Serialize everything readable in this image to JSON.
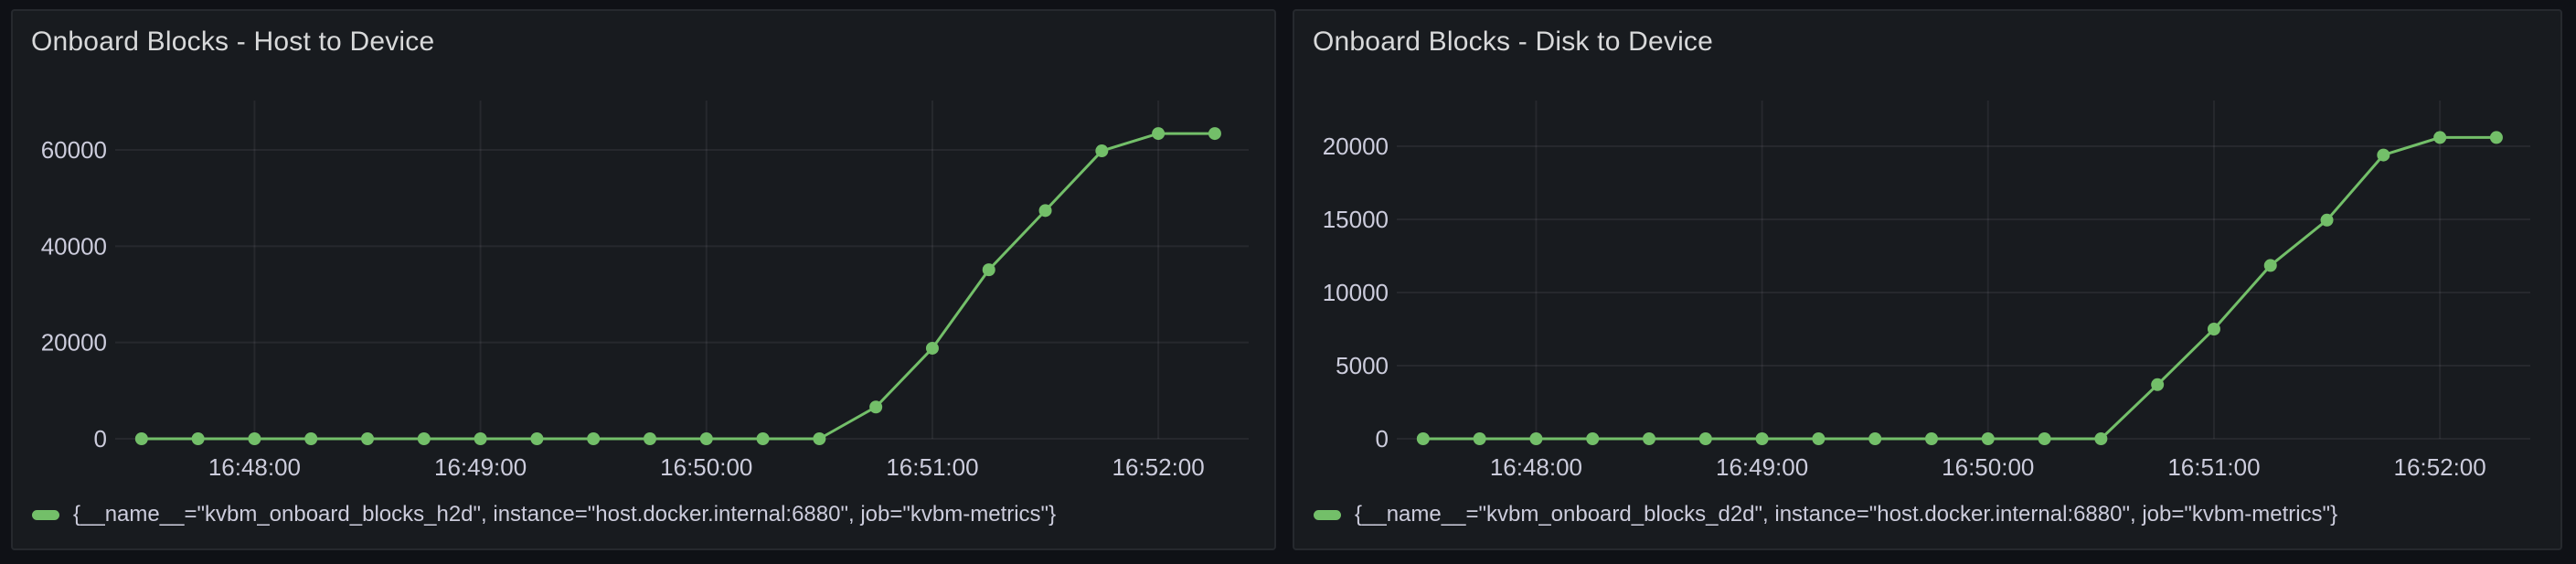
{
  "theme": {
    "series_green": "#73BF69",
    "panel_background": "#181b1f",
    "page_background": "#0f1116"
  },
  "chart_data": [
    {
      "type": "line",
      "title": "Onboard Blocks - Host to Device",
      "xlabel": "",
      "ylabel": "",
      "x": [
        "16:47:30",
        "16:47:45",
        "16:48:00",
        "16:48:15",
        "16:48:30",
        "16:48:45",
        "16:49:00",
        "16:49:15",
        "16:49:30",
        "16:49:45",
        "16:50:00",
        "16:50:15",
        "16:50:30",
        "16:50:45",
        "16:51:00",
        "16:51:15",
        "16:51:30",
        "16:51:45",
        "16:52:00",
        "16:52:15"
      ],
      "series": [
        {
          "name": "{__name__=\"kvbm_onboard_blocks_h2d\", instance=\"host.docker.internal:6880\", job=\"kvbm-metrics\"}",
          "color": "#73BF69",
          "values": [
            0,
            0,
            0,
            0,
            0,
            0,
            0,
            0,
            0,
            0,
            0,
            0,
            0,
            6600,
            18800,
            35100,
            47400,
            59800,
            63400,
            63400
          ]
        }
      ],
      "xticks": [
        "16:48:00",
        "16:49:00",
        "16:50:00",
        "16:51:00",
        "16:52:00"
      ],
      "yticks": [
        0,
        20000,
        40000,
        60000
      ],
      "ylim": [
        0,
        70250
      ],
      "x_domain": [
        "16:47:23",
        "16:52:24"
      ],
      "grid": true,
      "marker": "circle",
      "legend_position": "bottom-left"
    },
    {
      "type": "line",
      "title": "Onboard Blocks - Disk to Device",
      "xlabel": "",
      "ylabel": "",
      "x": [
        "16:47:30",
        "16:47:45",
        "16:48:00",
        "16:48:15",
        "16:48:30",
        "16:48:45",
        "16:49:00",
        "16:49:15",
        "16:49:30",
        "16:49:45",
        "16:50:00",
        "16:50:15",
        "16:50:30",
        "16:50:45",
        "16:51:00",
        "16:51:15",
        "16:51:30",
        "16:51:45",
        "16:52:00",
        "16:52:15"
      ],
      "series": [
        {
          "name": "{__name__=\"kvbm_onboard_blocks_d2d\", instance=\"host.docker.internal:6880\", job=\"kvbm-metrics\"}",
          "color": "#73BF69",
          "values": [
            0,
            0,
            0,
            0,
            0,
            0,
            0,
            0,
            0,
            0,
            0,
            0,
            0,
            3700,
            7500,
            11850,
            14950,
            19400,
            20600,
            20600
          ]
        }
      ],
      "xticks": [
        "16:48:00",
        "16:49:00",
        "16:50:00",
        "16:51:00",
        "16:52:00"
      ],
      "yticks": [
        0,
        5000,
        10000,
        15000,
        20000
      ],
      "ylim": [
        0,
        23125
      ],
      "x_domain": [
        "16:47:23",
        "16:52:24"
      ],
      "grid": true,
      "marker": "circle",
      "legend_position": "bottom-left"
    }
  ]
}
